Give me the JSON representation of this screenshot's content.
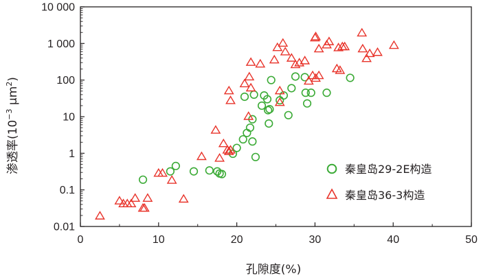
{
  "chart_data": {
    "type": "scatter",
    "xlabel": "孔隙度(%)",
    "ylabel": "渗透率(10⁻³ μm²)",
    "ylabel_parts": {
      "prefix": "渗透率(10",
      "exp": "−3",
      "mid": " μm",
      "pow": "2",
      "suffix": ")"
    },
    "xlim": [
      0,
      50
    ],
    "ylim": [
      0.01,
      10000
    ],
    "yscale": "log",
    "xticks": [
      0,
      10,
      20,
      30,
      40,
      50
    ],
    "xtick_labels": [
      "0",
      "10",
      "20",
      "30",
      "40",
      "50"
    ],
    "yticks": [
      0.01,
      0.1,
      1,
      10,
      100,
      1000,
      10000
    ],
    "ytick_labels": [
      "0.01",
      "0.1",
      "1",
      "10",
      "100",
      "1 000",
      "10 000"
    ],
    "grid": false,
    "legend_position": "bottom-right",
    "series": [
      {
        "name": "秦皇岛29-2E构造",
        "marker": "circle",
        "color": "#3aaa35",
        "points": [
          [
            8.0,
            0.19
          ],
          [
            11.5,
            0.32
          ],
          [
            12.2,
            0.45
          ],
          [
            14.5,
            0.32
          ],
          [
            16.5,
            0.34
          ],
          [
            17.5,
            0.32
          ],
          [
            17.8,
            0.28
          ],
          [
            18.1,
            0.27
          ],
          [
            19.5,
            0.97
          ],
          [
            20.0,
            1.4
          ],
          [
            20.8,
            2.4
          ],
          [
            21.3,
            3.6
          ],
          [
            21.7,
            5.0
          ],
          [
            22.0,
            8.5
          ],
          [
            22.0,
            2.1
          ],
          [
            22.4,
            0.79
          ],
          [
            21.0,
            35
          ],
          [
            22.2,
            40
          ],
          [
            23.2,
            20
          ],
          [
            23.5,
            38
          ],
          [
            23.9,
            30
          ],
          [
            24.0,
            15
          ],
          [
            24.1,
            6.5
          ],
          [
            24.2,
            16
          ],
          [
            24.4,
            100
          ],
          [
            25.5,
            28
          ],
          [
            26.0,
            38
          ],
          [
            26.6,
            11
          ],
          [
            27.0,
            60
          ],
          [
            27.5,
            125
          ],
          [
            28.7,
            120
          ],
          [
            28.8,
            45
          ],
          [
            29.0,
            23
          ],
          [
            29.5,
            45
          ],
          [
            31.5,
            45
          ],
          [
            34.5,
            115
          ]
        ]
      },
      {
        "name": "秦皇岛36-3构造",
        "marker": "triangle",
        "color": "#e8332a",
        "points": [
          [
            2.5,
            0.019
          ],
          [
            5.0,
            0.049
          ],
          [
            5.5,
            0.041
          ],
          [
            6.0,
            0.041
          ],
          [
            6.5,
            0.041
          ],
          [
            7.0,
            0.058
          ],
          [
            8.0,
            0.031
          ],
          [
            8.2,
            0.031
          ],
          [
            8.6,
            0.058
          ],
          [
            10.0,
            0.28
          ],
          [
            10.5,
            0.28
          ],
          [
            11.7,
            0.18
          ],
          [
            13.2,
            0.055
          ],
          [
            15.5,
            0.8
          ],
          [
            17.3,
            4.2
          ],
          [
            17.8,
            0.72
          ],
          [
            18.3,
            1.8
          ],
          [
            18.8,
            1.2
          ],
          [
            19.0,
            1.1
          ],
          [
            19.2,
            1.2
          ],
          [
            19.0,
            50
          ],
          [
            19.2,
            27
          ],
          [
            21.0,
            78
          ],
          [
            21.5,
            10
          ],
          [
            21.6,
            120
          ],
          [
            21.8,
            300
          ],
          [
            21.8,
            60
          ],
          [
            23.0,
            270
          ],
          [
            24.8,
            350
          ],
          [
            25.2,
            760
          ],
          [
            25.5,
            50
          ],
          [
            25.5,
            24
          ],
          [
            25.9,
            1000
          ],
          [
            26.2,
            580
          ],
          [
            27.0,
            390
          ],
          [
            27.5,
            260
          ],
          [
            28.0,
            290
          ],
          [
            28.7,
            330
          ],
          [
            29.2,
            92
          ],
          [
            29.7,
            130
          ],
          [
            30.0,
            1400
          ],
          [
            30.1,
            1500
          ],
          [
            30.1,
            110
          ],
          [
            30.5,
            130
          ],
          [
            30.5,
            700
          ],
          [
            31.5,
            900
          ],
          [
            31.8,
            1100
          ],
          [
            32.8,
            200
          ],
          [
            33.0,
            750
          ],
          [
            33.2,
            180
          ],
          [
            33.5,
            800
          ],
          [
            33.8,
            800
          ],
          [
            36.0,
            1900
          ],
          [
            36.1,
            700
          ],
          [
            36.6,
            380
          ],
          [
            37.0,
            520
          ],
          [
            38.0,
            560
          ],
          [
            40.1,
            870
          ]
        ]
      }
    ]
  }
}
